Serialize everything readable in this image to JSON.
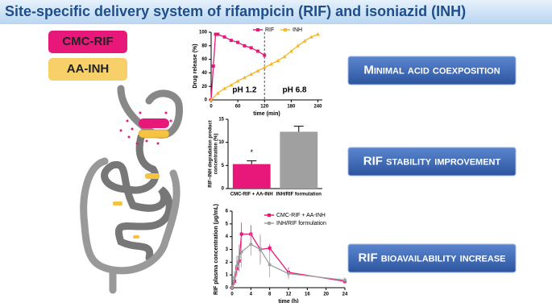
{
  "title": "Site-specific delivery system of rifampicin (RIF) and isoniazid (INH)",
  "formulations": [
    "CMC-RIF",
    "AA-INH"
  ],
  "callouts": [
    "Minimal acid coexposition",
    "RIF stability improvement",
    "RIF bioavailability increase"
  ],
  "chart_data": [
    {
      "type": "line",
      "xlabel": "time (min)",
      "ylabel": "Drug release (%)",
      "xlim": [
        0,
        250
      ],
      "xticks": [
        0,
        60,
        120,
        180,
        240
      ],
      "ylim": [
        0,
        100
      ],
      "yticks": [
        0,
        20,
        40,
        60,
        80,
        100
      ],
      "vline": 120,
      "annotations": [
        "pH 1.2",
        "pH 6.8"
      ],
      "series": [
        {
          "name": "RIF",
          "color": "#e8177a",
          "marker": "square",
          "x": [
            0,
            5,
            10,
            15,
            30,
            45,
            60,
            75,
            90,
            105,
            120
          ],
          "values": [
            0,
            50,
            97,
            97,
            93,
            88,
            85,
            80,
            77,
            72,
            66
          ]
        },
        {
          "name": "INH",
          "color": "#f5b82e",
          "marker": "triangle",
          "x": [
            0,
            15,
            30,
            45,
            60,
            75,
            90,
            105,
            120,
            135,
            150,
            165,
            180,
            195,
            210,
            225,
            240
          ],
          "values": [
            0,
            10,
            17,
            22,
            28,
            33,
            38,
            43,
            48,
            53,
            58,
            64,
            72,
            80,
            87,
            93,
            97
          ]
        }
      ]
    },
    {
      "type": "bar",
      "ylabel": [
        "RIF−INH degradation product",
        "concentration (%)"
      ],
      "categories": [
        "CMC-RIF + AA-INH",
        "INH/RIF formulation"
      ],
      "values": [
        5.3,
        12.3
      ],
      "errors": [
        0.7,
        1.2
      ],
      "colors": [
        "#e8177a",
        "#a0a0a0"
      ],
      "ylim": [
        0,
        15
      ],
      "yticks": [
        0,
        5,
        10,
        15
      ],
      "annotations": [
        "*"
      ]
    },
    {
      "type": "line",
      "xlabel": "time (h)",
      "ylabel": "RIF plasma concentration (µg/mL)",
      "xlim": [
        0,
        24
      ],
      "xticks": [
        0,
        4,
        8,
        12,
        16,
        20,
        24
      ],
      "ylim": [
        0,
        6
      ],
      "yticks": [
        0,
        1,
        2,
        3,
        4,
        5,
        6
      ],
      "legend": "top-right",
      "series": [
        {
          "name": "CMC-RIF + AA-INH",
          "color": "#e8177a",
          "marker": "square",
          "x": [
            0,
            0.5,
            1,
            1.5,
            2,
            4,
            6,
            8,
            12,
            24
          ],
          "values": [
            0,
            0.5,
            1.5,
            2.1,
            4.2,
            4.2,
            3.0,
            3.1,
            1.2,
            0.5
          ],
          "errors": [
            0.1,
            0.3,
            0.6,
            0.8,
            0.9,
            0.7,
            1.0,
            0.3,
            0.4,
            0.2
          ]
        },
        {
          "name": "INH/RIF formulation",
          "color": "#a0a0a0",
          "marker": "circle",
          "x": [
            0,
            0.5,
            1,
            1.5,
            2,
            4,
            6,
            8,
            12,
            24
          ],
          "values": [
            0,
            0.8,
            1.7,
            2.4,
            2.8,
            3.4,
            3.0,
            1.8,
            1.1,
            0.6
          ],
          "errors": [
            0.1,
            0.5,
            0.8,
            1.0,
            1.2,
            0.9,
            1.2,
            1.0,
            0.4,
            0.2
          ]
        }
      ]
    }
  ]
}
